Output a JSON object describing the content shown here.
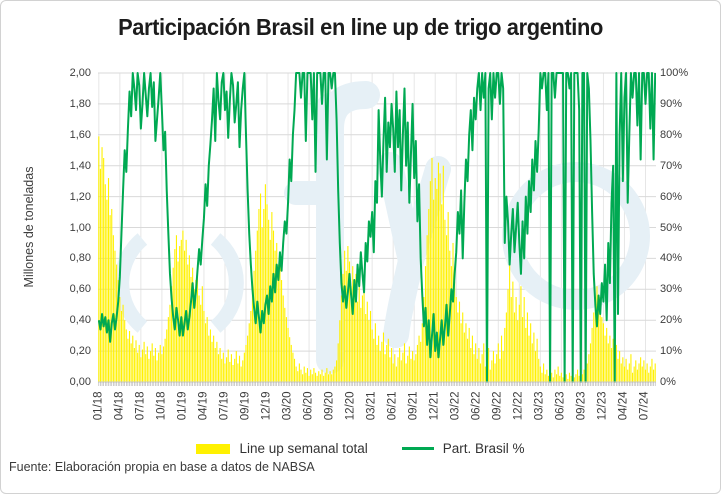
{
  "title": "Participación Brasil en line up de trigo argentino",
  "source": "Fuente: Elaboración propia en base a datos de NABSA",
  "watermark": "fyo",
  "legend": {
    "bar": {
      "label": "Line up semanal total",
      "color": "#FFF100"
    },
    "line": {
      "label": "Part. Brasil %",
      "color": "#00A952"
    }
  },
  "chart_data": {
    "type": "bar+line combo, weekly series",
    "title": "Participación Brasil en line up de trigo argentino",
    "grid": "horizontal and vertical, light gray",
    "weeks_per_tick": 13,
    "x_tick_labels": [
      "01/18",
      "04/18",
      "07/18",
      "10/18",
      "01/19",
      "04/19",
      "07/19",
      "09/19",
      "12/19",
      "03/20",
      "06/20",
      "09/20",
      "12/20",
      "03/21",
      "06/21",
      "09/21",
      "12/21",
      "03/22",
      "06/22",
      "09/22",
      "12/22",
      "03/23",
      "06/23",
      "09/23",
      "12/23",
      "04/24",
      "07/24"
    ],
    "left_axis": {
      "label": "Millones de toneladas",
      "min": 0,
      "max": 2,
      "ticks": [
        "2,00",
        "1,80",
        "1,60",
        "1,40",
        "1,20",
        "1,00",
        "0,80",
        "0,60",
        "0,40",
        "0,20",
        "0,00"
      ]
    },
    "right_axis": {
      "label": "",
      "min": 0,
      "max": 100,
      "ticks": [
        "100%",
        "90%",
        "80%",
        "70%",
        "60%",
        "50%",
        "40%",
        "30%",
        "20%",
        "10%",
        "0%"
      ]
    },
    "colors": {
      "grid_h": "#d9d9d9",
      "grid_v": "#e6e6e6",
      "axis": "#c9c9c9",
      "week_tick": "#adadad",
      "watermark": "#e6f0f6"
    },
    "series": [
      {
        "name": "Line up semanal total",
        "type": "bar",
        "axis": "left",
        "color": "#FFF100",
        "values": [
          1.59,
          1.38,
          1.52,
          1.45,
          1.28,
          1.18,
          1.32,
          1.08,
          1.12,
          0.95,
          0.85,
          0.76,
          0.66,
          0.55,
          0.46,
          0.5,
          0.4,
          0.34,
          0.28,
          0.33,
          0.25,
          0.3,
          0.22,
          0.27,
          0.19,
          0.24,
          0.16,
          0.21,
          0.26,
          0.18,
          0.23,
          0.15,
          0.2,
          0.25,
          0.17,
          0.22,
          0.14,
          0.19,
          0.24,
          0.18,
          0.23,
          0.28,
          0.34,
          0.42,
          0.5,
          0.62,
          0.74,
          0.86,
          0.95,
          0.78,
          0.88,
          0.92,
          0.98,
          0.85,
          0.92,
          0.76,
          0.82,
          0.68,
          0.74,
          0.6,
          0.66,
          0.72,
          0.56,
          0.5,
          0.62,
          0.46,
          0.38,
          0.42,
          0.3,
          0.34,
          0.26,
          0.3,
          0.22,
          0.26,
          0.18,
          0.22,
          0.15,
          0.19,
          0.12,
          0.16,
          0.21,
          0.13,
          0.18,
          0.11,
          0.15,
          0.2,
          0.12,
          0.17,
          0.1,
          0.14,
          0.19,
          0.24,
          0.3,
          0.38,
          0.46,
          0.58,
          0.72,
          0.85,
          0.98,
          1.12,
          1.22,
          1.0,
          1.12,
          1.28,
          1.15,
          1.05,
          0.92,
          1.1,
          0.98,
          0.85,
          0.9,
          0.76,
          0.82,
          0.66,
          0.56,
          0.48,
          0.42,
          0.35,
          0.29,
          0.24,
          0.19,
          0.15,
          0.1,
          0.07,
          0.12,
          0.08,
          0.05,
          0.1,
          0.06,
          0.09,
          0.04,
          0.08,
          0.05,
          0.09,
          0.06,
          0.04,
          0.07,
          0.05,
          0.08,
          0.04,
          0.06,
          0.09,
          0.05,
          0.07,
          0.05,
          0.08,
          0.1,
          0.14,
          0.25,
          0.4,
          0.56,
          0.7,
          0.85,
          0.72,
          0.88,
          0.78,
          0.62,
          0.75,
          0.58,
          0.7,
          0.52,
          0.64,
          0.48,
          0.56,
          0.68,
          0.44,
          0.52,
          0.4,
          0.46,
          0.34,
          0.28,
          0.38,
          0.24,
          0.3,
          0.2,
          0.26,
          0.32,
          0.18,
          0.24,
          0.28,
          0.16,
          0.22,
          0.12,
          0.18,
          0.1,
          0.16,
          0.22,
          0.14,
          0.19,
          0.25,
          0.12,
          0.17,
          0.23,
          0.15,
          0.2,
          0.14,
          0.18,
          0.24,
          0.3,
          0.26,
          0.38,
          0.55,
          0.75,
          0.95,
          1.12,
          1.3,
          1.45,
          1.18,
          1.32,
          1.25,
          1.42,
          1.35,
          1.15,
          1.4,
          1.05,
          0.95,
          1.1,
          0.85,
          0.75,
          0.9,
          0.65,
          0.55,
          0.45,
          0.52,
          0.38,
          0.45,
          0.32,
          0.38,
          0.28,
          0.35,
          0.22,
          0.3,
          0.18,
          0.25,
          0.15,
          0.22,
          0.12,
          0.18,
          0.25,
          0.1,
          0.16,
          0.22,
          0.08,
          0.14,
          0.2,
          0.12,
          0.18,
          0.25,
          0.15,
          0.3,
          0.2,
          0.35,
          0.45,
          0.6,
          0.78,
          0.55,
          0.65,
          0.45,
          0.55,
          0.4,
          0.5,
          0.62,
          0.42,
          0.55,
          0.35,
          0.45,
          0.3,
          0.38,
          0.25,
          0.32,
          0.2,
          0.28,
          0.15,
          0.1,
          0.06,
          0.12,
          0.05,
          0.08,
          0.04,
          0.1,
          0.06,
          0.03,
          0.08,
          0.05,
          0.1,
          0.04,
          0.06,
          0.03,
          0.08,
          0.05,
          0.02,
          0.06,
          0.04,
          0.07,
          0.03,
          0.05,
          0.08,
          0.04,
          0.06,
          0.05,
          0.08,
          0.06,
          0.12,
          0.18,
          0.25,
          0.35,
          0.45,
          0.55,
          0.62,
          0.48,
          0.55,
          0.42,
          0.38,
          0.3,
          0.35,
          0.25,
          0.3,
          0.22,
          0.28,
          0.18,
          0.24,
          0.15,
          0.2,
          0.12,
          0.16,
          0.1,
          0.15,
          0.08,
          0.12,
          0.18,
          0.06,
          0.1,
          0.14,
          0.08,
          0.12,
          0.16,
          0.1,
          0.14,
          0.08,
          0.12,
          0.06,
          0.1,
          0.15,
          0.08,
          0.12
        ]
      },
      {
        "name": "Part. Brasil %",
        "type": "line",
        "axis": "right",
        "color": "#00A952",
        "values": [
          20,
          17,
          22,
          18,
          21,
          16,
          20,
          13,
          19,
          22,
          17,
          21,
          26,
          34,
          48,
          62,
          75,
          68,
          82,
          94,
          86,
          100,
          95,
          88,
          100,
          96,
          82,
          90,
          100,
          93,
          86,
          95,
          100,
          89,
          97,
          78,
          85,
          92,
          100,
          88,
          75,
          81,
          62,
          48,
          35,
          27,
          21,
          17,
          24,
          20,
          15,
          21,
          15,
          19,
          23,
          17,
          21,
          26,
          32,
          24,
          29,
          36,
          43,
          38,
          46,
          53,
          64,
          57,
          70,
          77,
          85,
          95,
          78,
          100,
          91,
          85,
          97,
          100,
          88,
          94,
          79,
          91,
          100,
          96,
          84,
          90,
          97,
          76,
          88,
          95,
          100,
          80,
          62,
          48,
          38,
          30,
          24,
          19,
          26,
          21,
          16,
          23,
          19,
          25,
          28,
          22,
          31,
          26,
          35,
          29,
          38,
          33,
          42,
          36,
          45,
          52,
          48,
          58,
          72,
          65,
          80,
          88,
          100,
          100,
          100,
          92,
          100,
          100,
          78,
          100,
          100,
          100,
          85,
          100,
          68,
          100,
          100,
          100,
          90,
          100,
          100,
          72,
          100,
          100,
          95,
          100,
          100,
          85,
          62,
          45,
          32,
          26,
          31,
          24,
          29,
          35,
          28,
          22,
          33,
          26,
          38,
          31,
          42,
          35,
          29,
          45,
          39,
          52,
          47,
          55,
          42,
          65,
          58,
          88,
          72,
          60,
          78,
          92,
          68,
          84,
          76,
          90,
          82,
          68,
          94,
          76,
          88,
          62,
          80,
          95,
          70,
          84,
          58,
          74,
          90,
          66,
          78,
          52,
          64,
          40,
          28,
          18,
          24,
          12,
          20,
          8,
          15,
          22,
          10,
          16,
          8,
          14,
          20,
          12,
          18,
          25,
          15,
          22,
          30,
          26,
          35,
          42,
          55,
          48,
          62,
          40,
          58,
          72,
          65,
          80,
          88,
          75,
          92,
          85,
          95,
          100,
          88,
          100,
          92,
          100,
          0,
          95,
          100,
          85,
          100,
          92,
          100,
          100,
          90,
          100,
          95,
          45,
          60,
          52,
          38,
          48,
          56,
          42,
          50,
          58,
          45,
          35,
          52,
          40,
          60,
          48,
          65,
          55,
          72,
          62,
          78,
          68,
          82,
          100,
          95,
          100,
          100,
          88,
          100,
          0,
          100,
          100,
          92,
          100,
          100,
          100,
          100,
          100,
          0,
          100,
          100,
          95,
          100,
          0,
          100,
          100,
          100,
          88,
          0,
          100,
          100,
          0,
          100,
          95,
          78,
          55,
          35,
          25,
          18,
          28,
          22,
          32,
          26,
          38,
          20,
          45,
          32,
          58,
          70,
          0,
          100,
          22,
          80,
          100,
          65,
          92,
          100,
          58,
          80,
          100,
          92,
          100,
          100,
          83,
          100,
          72,
          100,
          100,
          90,
          100,
          100,
          82,
          100,
          72,
          100
        ]
      }
    ]
  }
}
